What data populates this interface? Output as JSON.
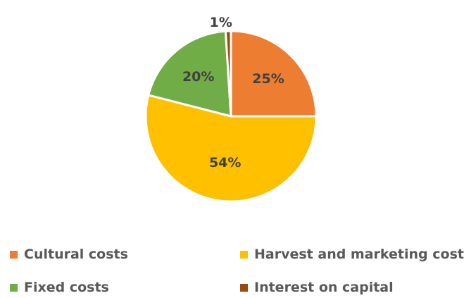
{
  "chart_data": {
    "type": "pie",
    "title": "",
    "legend_position": "bottom",
    "categories": [
      "Cultural costs",
      "Harvest and marketing costs",
      "Fixed costs",
      "Interest on capital"
    ],
    "values": [
      25,
      54,
      20,
      1
    ],
    "data_labels": [
      "25%",
      "54%",
      "20%",
      "1%"
    ],
    "colors": [
      "#ED7D31",
      "#FFC000",
      "#70AD47",
      "#9E480E"
    ],
    "start_angle": "12 o'clock",
    "direction": "clockwise"
  }
}
